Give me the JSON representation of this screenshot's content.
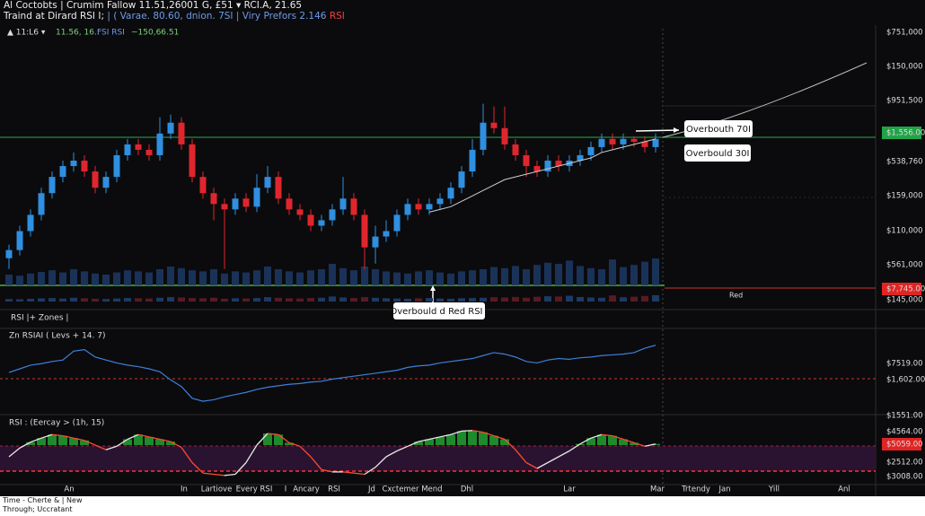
{
  "header": {
    "line1": "Al Coctobts | Crumim Fallow 11.51,26001 G, £51 ▾ RCI.A, 21.65",
    "line2": [
      "Traind at Dirard RSI I;",
      "| ( Varae. 80.60, dnion. 7SI | Viry Prefors 2.146",
      "RSI"
    ]
  },
  "toolbar": [
    "▲ 11:L6 ▾",
    "11.56, 16.:",
    "FSI RSI",
    "~150,66.51"
  ],
  "chart_data": {
    "type": "candlestick",
    "open": [
      14,
      17,
      24,
      30,
      38,
      44,
      48,
      50,
      46,
      40,
      44,
      52,
      56,
      54,
      52,
      60,
      64,
      56,
      44,
      38,
      34,
      32,
      36,
      33,
      40,
      44,
      36,
      32,
      30,
      26,
      28,
      32,
      36,
      30,
      18,
      22,
      24,
      30,
      34,
      32,
      34,
      36,
      40,
      46,
      54,
      64,
      62,
      56,
      52,
      48,
      46,
      50,
      48,
      50,
      52,
      55,
      58,
      56,
      58,
      57,
      55
    ],
    "high": [
      19,
      26,
      32,
      40,
      46,
      50,
      53,
      52,
      48,
      46,
      54,
      58,
      58,
      56,
      66,
      67,
      66,
      58,
      46,
      40,
      36,
      38,
      38,
      45,
      48,
      46,
      38,
      34,
      32,
      30,
      34,
      44,
      38,
      32,
      26,
      28,
      32,
      36,
      36,
      36,
      38,
      42,
      48,
      58,
      71,
      70,
      70,
      58,
      54,
      50,
      52,
      52,
      52,
      54,
      57,
      60,
      60,
      60,
      59,
      59,
      60
    ],
    "low": [
      10,
      15,
      22,
      28,
      36,
      42,
      46,
      44,
      38,
      38,
      42,
      50,
      52,
      50,
      50,
      58,
      54,
      42,
      36,
      28,
      10,
      30,
      31,
      31,
      38,
      34,
      30,
      28,
      24,
      24,
      26,
      30,
      28,
      10,
      12,
      20,
      22,
      28,
      30,
      30,
      32,
      34,
      38,
      44,
      52,
      60,
      54,
      50,
      44,
      44,
      44,
      46,
      46,
      48,
      50,
      53,
      54,
      54,
      55,
      53,
      53
    ],
    "close": [
      17,
      24,
      30,
      38,
      44,
      48,
      50,
      46,
      40,
      44,
      52,
      56,
      54,
      52,
      60,
      64,
      56,
      44,
      38,
      34,
      32,
      36,
      33,
      40,
      44,
      36,
      32,
      30,
      26,
      28,
      32,
      36,
      30,
      18,
      22,
      24,
      30,
      34,
      32,
      34,
      36,
      40,
      46,
      54,
      64,
      62,
      56,
      52,
      48,
      46,
      50,
      48,
      50,
      52,
      55,
      58,
      56,
      58,
      57,
      55,
      58
    ],
    "volume": [
      20,
      18,
      22,
      25,
      28,
      24,
      30,
      26,
      22,
      20,
      24,
      28,
      26,
      24,
      30,
      35,
      32,
      28,
      26,
      30,
      22,
      26,
      24,
      28,
      35,
      30,
      26,
      24,
      28,
      30,
      40,
      32,
      28,
      35,
      30,
      26,
      24,
      22,
      26,
      28,
      24,
      22,
      26,
      28,
      30,
      34,
      32,
      36,
      30,
      38,
      42,
      40,
      46,
      36,
      32,
      30,
      48,
      34,
      38,
      44,
      50
    ],
    "ma": [
      null,
      null,
      null,
      null,
      null,
      null,
      null,
      null,
      null,
      null,
      null,
      null,
      null,
      null,
      null,
      null,
      null,
      null,
      null,
      null,
      null,
      null,
      null,
      null,
      null,
      null,
      null,
      null,
      null,
      null,
      null,
      null,
      null,
      null,
      null,
      null,
      null,
      null,
      null,
      31,
      32,
      33,
      35,
      37,
      39,
      41,
      43,
      44,
      45,
      46,
      47,
      48,
      49,
      50,
      51,
      53,
      54,
      55,
      56,
      57,
      58
    ],
    "ylim": [
      0,
      100
    ],
    "volume_lim": [
      0,
      100
    ],
    "up_color": "#2f8fe0",
    "down_color": "#e0262d",
    "volume_color": "#1d3a66",
    "ma_color": "#cfcfcf",
    "price_labels": [
      "$751,000",
      "$150,000",
      "$951,500",
      "$1,556.00",
      "$538,760",
      "$159,000",
      "$110,000",
      "$561,000",
      "$7,745.00",
      "$145,000"
    ],
    "x_labels": [
      "An",
      "In",
      "Lartiove",
      "Every RSI",
      "I",
      "Ancary",
      "RSI",
      "Jd",
      "Cxctemer Mend",
      "Dhl",
      "Lar",
      "Mar",
      "Trtendy",
      "Jan",
      "Yill",
      "Anl"
    ]
  },
  "panes": [
    {
      "title": "RSI |+ Zones |"
    },
    {
      "title": "Zn RSIAI ( Levs + 14. 7)",
      "color": "#3f7fd8",
      "ylim": [
        0,
        100
      ],
      "labels": [
        "$7519.00",
        "$1,602.00"
      ],
      "values": [
        45,
        50,
        55,
        57,
        60,
        62,
        74,
        76,
        66,
        62,
        58,
        55,
        53,
        50,
        46,
        35,
        26,
        10,
        6,
        8,
        12,
        15,
        18,
        22,
        25,
        27,
        29,
        30,
        32,
        33,
        36,
        38,
        40,
        42,
        44,
        46,
        48,
        52,
        54,
        55,
        58,
        60,
        62,
        64,
        68,
        72,
        70,
        66,
        60,
        58,
        62,
        64,
        63,
        65,
        66,
        68,
        69,
        70,
        72,
        78,
        82
      ]
    },
    {
      "title": "RSI : (Eercay > (1h, 15)",
      "up_color": "#e8e8e8",
      "down_color": "#ff4a2e",
      "histogram_color": "#1f8a2c",
      "ylim": [
        0,
        100
      ],
      "labels": [
        "$1551.00",
        "$4564.00",
        "$5059.00",
        "$2512.00",
        "$3008.00"
      ],
      "values": [
        40,
        55,
        65,
        72,
        78,
        76,
        72,
        68,
        60,
        52,
        58,
        70,
        78,
        74,
        70,
        66,
        56,
        30,
        12,
        10,
        8,
        10,
        30,
        60,
        80,
        78,
        64,
        58,
        40,
        18,
        14,
        14,
        12,
        10,
        22,
        40,
        50,
        58,
        66,
        70,
        74,
        78,
        84,
        85,
        82,
        76,
        70,
        52,
        30,
        20,
        30,
        40,
        50,
        62,
        72,
        78,
        76,
        70,
        64,
        58,
        62
      ]
    }
  ],
  "annotations": [
    "Overbouth 70I",
    "Overbould 30I",
    "Overbould d Red RSI I",
    "Red"
  ],
  "footer": [
    "Time - Cherte & | New",
    "Through; Uccratant"
  ]
}
